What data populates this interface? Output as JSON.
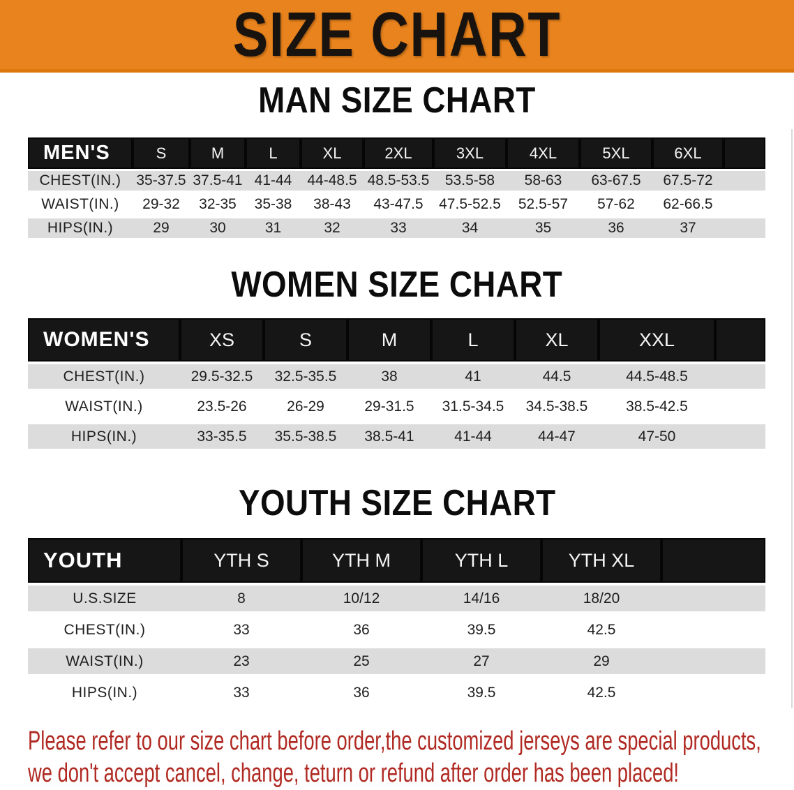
{
  "banner": {
    "title": "SIZE CHART"
  },
  "sections": [
    {
      "heading": "MAN SIZE CHART",
      "group_label": "MEN'S",
      "columns": [
        "S",
        "M",
        "L",
        "XL",
        "2XL",
        "3XL",
        "4XL",
        "5XL",
        "6XL"
      ],
      "rows": [
        {
          "label": "CHEST(IN.)",
          "values": [
            "35-37.5",
            "37.5-41",
            "41-44",
            "44-48.5",
            "48.5-53.5",
            "53.5-58",
            "58-63",
            "63-67.5",
            "67.5-72"
          ]
        },
        {
          "label": "WAIST(IN.)",
          "values": [
            "29-32",
            "32-35",
            "35-38",
            "38-43",
            "43-47.5",
            "47.5-52.5",
            "52.5-57",
            "57-62",
            "62-66.5"
          ]
        },
        {
          "label": "HIPS(IN.)",
          "values": [
            "29",
            "30",
            "31",
            "32",
            "33",
            "34",
            "35",
            "36",
            "37"
          ]
        }
      ]
    },
    {
      "heading": "WOMEN SIZE CHART",
      "group_label": "WOMEN'S",
      "columns": [
        "XS",
        "S",
        "M",
        "L",
        "XL",
        "XXL"
      ],
      "rows": [
        {
          "label": "CHEST(IN.)",
          "values": [
            "29.5-32.5",
            "32.5-35.5",
            "38",
            "41",
            "44.5",
            "44.5-48.5"
          ]
        },
        {
          "label": "WAIST(IN.)",
          "values": [
            "23.5-26",
            "26-29",
            "29-31.5",
            "31.5-34.5",
            "34.5-38.5",
            "38.5-42.5"
          ]
        },
        {
          "label": "HIPS(IN.)",
          "values": [
            "33-35.5",
            "35.5-38.5",
            "38.5-41",
            "41-44",
            "44-47",
            "47-50"
          ]
        }
      ]
    },
    {
      "heading": "YOUTH SIZE CHART",
      "group_label": "YOUTH",
      "columns": [
        "YTH S",
        "YTH M",
        "YTH L",
        "YTH XL"
      ],
      "rows": [
        {
          "label": "U.S.SIZE",
          "values": [
            "8",
            "10/12",
            "14/16",
            "18/20"
          ]
        },
        {
          "label": "CHEST(IN.)",
          "values": [
            "33",
            "36",
            "39.5",
            "42.5"
          ]
        },
        {
          "label": "WAIST(IN.)",
          "values": [
            "23",
            "25",
            "27",
            "29"
          ]
        },
        {
          "label": "HIPS(IN.)",
          "values": [
            "33",
            "36",
            "39.5",
            "42.5"
          ]
        }
      ]
    }
  ],
  "footer": {
    "lines": [
      "Please refer to our size chart before order,the customized jerseys are special products,",
      "we don't accept cancel, change, teturn or refund after order has been placed!"
    ]
  },
  "colors": {
    "banner_bg": "#E8831D",
    "header_bg": "#161616",
    "stripe": "#DCDCDC",
    "footer_text": "#B02A23"
  }
}
